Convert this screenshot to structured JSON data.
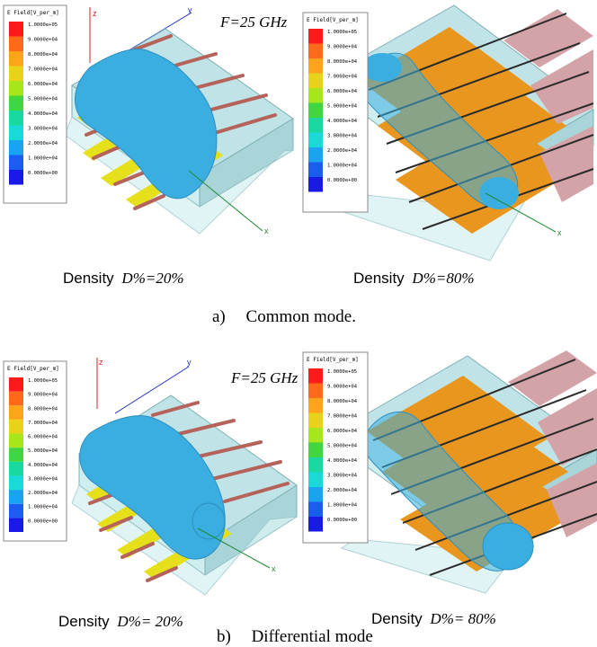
{
  "legend": {
    "title": "E Field[V_per_m]",
    "values": [
      "1.0000e+05",
      "9.0000e+04",
      "8.0000e+04",
      "7.0000e+04",
      "6.0000e+04",
      "5.0000e+04",
      "4.0000e+04",
      "3.0000e+04",
      "2.0000e+04",
      "1.0000e+04",
      "0.0000e+00"
    ],
    "colors": [
      "#ff1a1a",
      "#ff6a1a",
      "#ffa31a",
      "#e8d21a",
      "#a6e61a",
      "#3fd63f",
      "#1ad9a0",
      "#1ad9d9",
      "#1aa3f0",
      "#1a5ef0",
      "#1a1ae6"
    ]
  },
  "axes": {
    "x": "x",
    "y": "y",
    "z": "z"
  },
  "frequency_label": "F=25 GHz",
  "panels": [
    {
      "density_prefix": "Density",
      "density_value": "D%=20%"
    },
    {
      "density_prefix": "Density",
      "density_value": "D%=80%"
    },
    {
      "density_prefix": "Density",
      "density_value": "D%= 20%"
    },
    {
      "density_prefix": "Density",
      "density_value": "D%= 80%"
    }
  ],
  "captions": {
    "a": {
      "letter": "a)",
      "text": "Common mode."
    },
    "b": {
      "letter": "b)",
      "text": "Differential mode"
    }
  },
  "colors": {
    "substrate": "#bfe3e6",
    "strip_yellow": "#e6e01a",
    "strip_orange": "#e8961e",
    "strip_pink": "#d4a3a8",
    "trace": "#b5635a",
    "field_cloud": "#3aaee0",
    "axis_z": "#d42020",
    "axis_y": "#2030c0",
    "axis_x": "#208a30"
  }
}
